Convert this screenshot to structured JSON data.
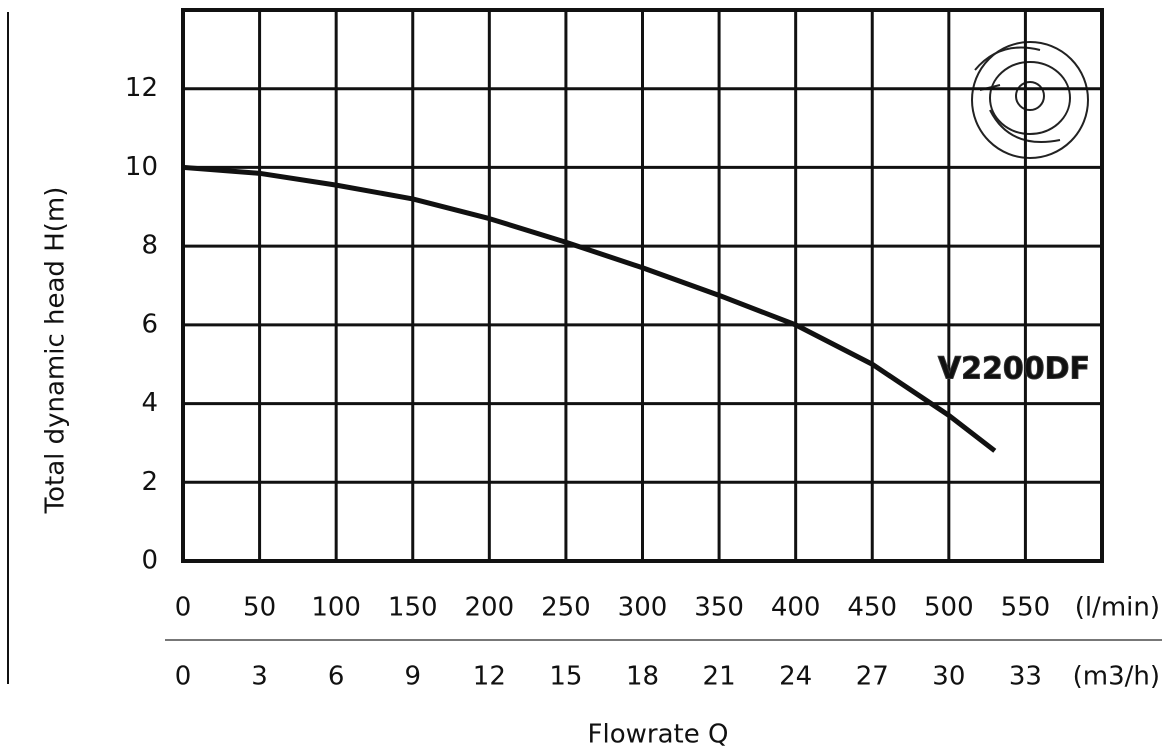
{
  "chart_data": {
    "type": "line",
    "x_label": "Flowrate Q",
    "y_label": "Total dynamic head H(m)",
    "x_unit": "(l/min)",
    "x2_unit": "(m3/h)",
    "x": [
      0,
      50,
      100,
      150,
      200,
      250,
      300,
      350,
      400,
      450,
      500,
      530
    ],
    "series": [
      {
        "name": "V2200DF",
        "color": "#111111",
        "values": [
          10,
          9.85,
          9.55,
          9.2,
          8.7,
          8.1,
          7.45,
          6.75,
          6.0,
          5.0,
          3.7,
          2.8
        ]
      }
    ],
    "xlim": [
      0,
      600
    ],
    "xticks": [
      0,
      50,
      100,
      150,
      200,
      250,
      300,
      350,
      400,
      450,
      500,
      550
    ],
    "x2lim": [
      0,
      36
    ],
    "x2ticks": [
      0,
      3,
      6,
      9,
      12,
      15,
      18,
      21,
      24,
      27,
      30,
      33
    ],
    "ylim": [
      0,
      14
    ],
    "yticks": [
      0,
      2,
      4,
      6,
      8,
      10,
      12
    ],
    "grid": true
  }
}
